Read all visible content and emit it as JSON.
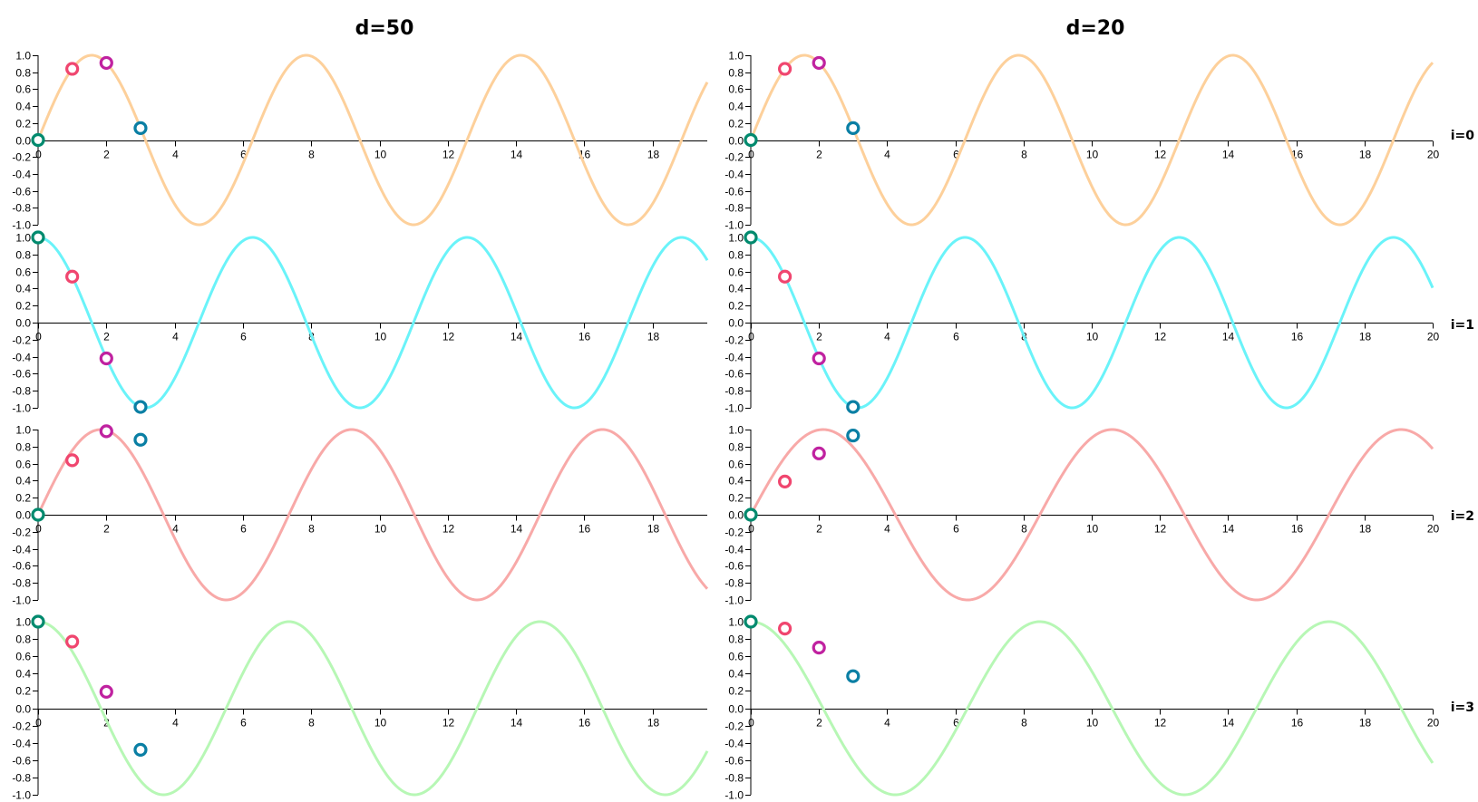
{
  "chart_data": {
    "type": "line",
    "columns": [
      {
        "title": "d=50",
        "d": 50,
        "xlim": [
          0,
          19.6
        ],
        "x_ticks": [
          0,
          2,
          4,
          6,
          8,
          10,
          12,
          14,
          16,
          18
        ]
      },
      {
        "title": "d=20",
        "d": 20,
        "xlim": [
          0,
          20
        ],
        "x_ticks": [
          0,
          2,
          4,
          6,
          8,
          10,
          12,
          14,
          16,
          18,
          20
        ]
      }
    ],
    "rows": [
      {
        "label": "i=0",
        "i": 0,
        "func": "sin",
        "color": "#fdd09b"
      },
      {
        "label": "i=1",
        "i": 1,
        "func": "cos",
        "color": "#6af3f9"
      },
      {
        "label": "i=2",
        "i": 2,
        "func": "sin",
        "color": "#f8a9a8"
      },
      {
        "label": "i=3",
        "i": 3,
        "func": "cos",
        "color": "#b7f7b5"
      }
    ],
    "ylim": [
      -1.0,
      1.0
    ],
    "y_ticks": [
      "1.0",
      "0.8",
      "0.6",
      "0.4",
      "0.2",
      "0.0",
      "-0.2",
      "-0.4",
      "-0.6",
      "-0.8",
      "-1.0"
    ],
    "point_positions": [
      0,
      1,
      2,
      3
    ],
    "point_colors": [
      "#008a6e",
      "#f0466f",
      "#c022a0",
      "#0a7fa4"
    ],
    "panels": [
      {
        "column": "d=50",
        "row": "i=0",
        "points": [
          [
            0,
            0.0
          ],
          [
            1,
            0.84
          ],
          [
            2,
            0.91
          ],
          [
            3,
            0.14
          ]
        ]
      },
      {
        "column": "d=50",
        "row": "i=1",
        "points": [
          [
            0,
            1.0
          ],
          [
            1,
            0.54
          ],
          [
            2,
            -0.42
          ],
          [
            3,
            -0.99
          ]
        ]
      },
      {
        "column": "d=50",
        "row": "i=2",
        "points": [
          [
            0,
            0.0
          ],
          [
            1,
            0.64
          ],
          [
            2,
            0.98
          ],
          [
            3,
            0.88
          ]
        ]
      },
      {
        "column": "d=50",
        "row": "i=3",
        "points": [
          [
            0,
            1.0
          ],
          [
            1,
            0.77
          ],
          [
            2,
            0.19
          ],
          [
            3,
            -0.48
          ]
        ]
      },
      {
        "column": "d=20",
        "row": "i=0",
        "points": [
          [
            0,
            0.0
          ],
          [
            1,
            0.84
          ],
          [
            2,
            0.91
          ],
          [
            3,
            0.14
          ]
        ]
      },
      {
        "column": "d=20",
        "row": "i=1",
        "points": [
          [
            0,
            1.0
          ],
          [
            1,
            0.54
          ],
          [
            2,
            -0.42
          ],
          [
            3,
            -0.99
          ]
        ]
      },
      {
        "column": "d=20",
        "row": "i=2",
        "points": [
          [
            0,
            0.0
          ],
          [
            1,
            0.39
          ],
          [
            2,
            0.72
          ],
          [
            3,
            0.93
          ]
        ]
      },
      {
        "column": "d=20",
        "row": "i=3",
        "points": [
          [
            0,
            1.0
          ],
          [
            1,
            0.92
          ],
          [
            2,
            0.7
          ],
          [
            3,
            0.37
          ]
        ]
      }
    ],
    "grid": false,
    "legend": "none"
  }
}
